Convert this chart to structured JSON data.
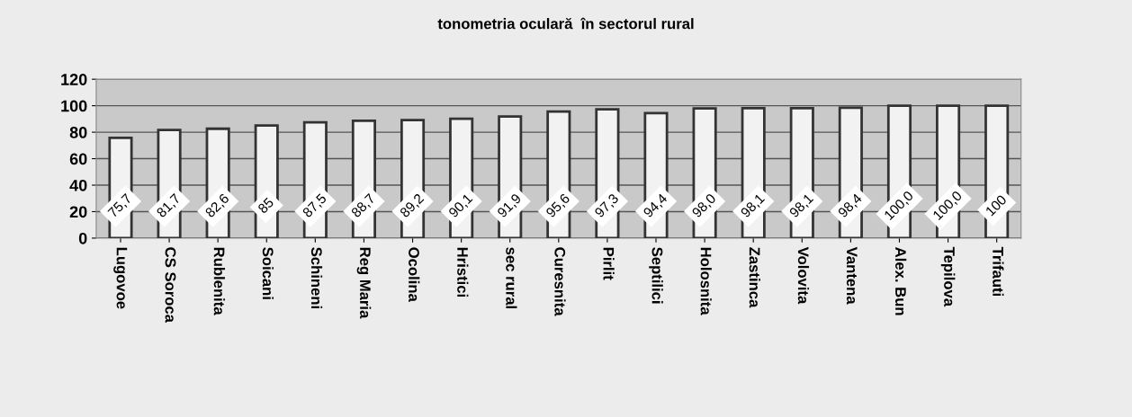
{
  "chart_data": {
    "type": "bar",
    "title": "tonometria oculară  în sectorul rural",
    "categories": [
      "Lugovoe",
      "CS Soroca",
      "Rublenita",
      "Soicani",
      "Schineni",
      "Reg Maria",
      "Ocolina",
      "Hristici",
      "sec rural",
      "Curesnita",
      "Pirlit",
      "Septilici",
      "Holosnita",
      "Zastinca",
      "Volovita",
      "Vantena",
      "Alex. Bun",
      "Tepilova",
      "Trifauti"
    ],
    "values": [
      75.7,
      81.7,
      82.6,
      85,
      87.5,
      88.7,
      89.2,
      90.1,
      91.9,
      95.6,
      97.3,
      94.4,
      98.0,
      98.1,
      98.1,
      98.4,
      100.0,
      100.0,
      100
    ],
    "value_labels": [
      "75,7",
      "81,7",
      "82,6",
      "85",
      "87,5",
      "88,7",
      "89,2",
      "90,1",
      "91,9",
      "95,6",
      "97,3",
      "94,4",
      "98,0",
      "98,1",
      "98,1",
      "98,4",
      "100,0",
      "100,0",
      "100"
    ],
    "color": "#f2f2f2",
    "ylim": [
      0,
      120
    ],
    "yticks": [
      0,
      20,
      40,
      60,
      80,
      100,
      120
    ],
    "grid": "y",
    "legend": false
  }
}
